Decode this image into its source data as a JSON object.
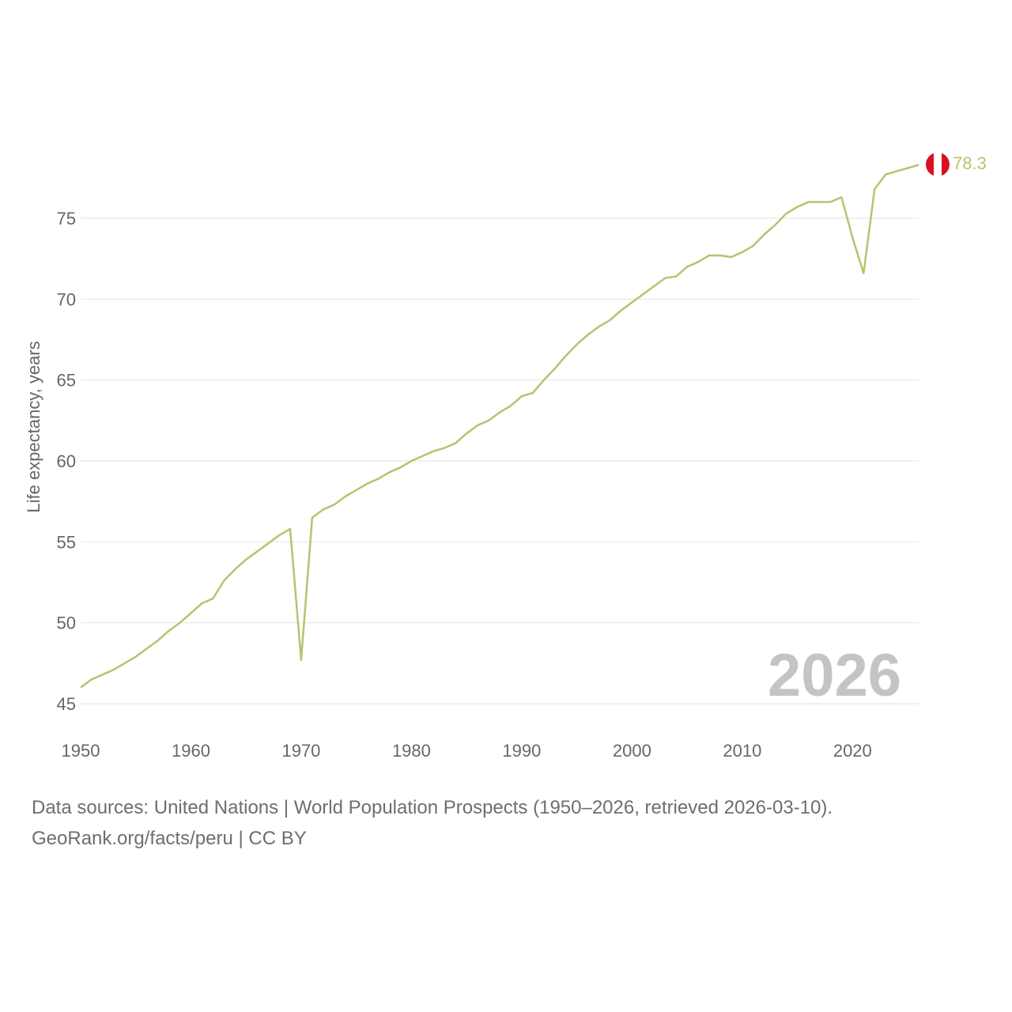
{
  "colors": {
    "line": "#b5c46f",
    "grid": "#e8e8e8",
    "tick_text": "#666666",
    "watermark": "#c4c4c4",
    "flag_red": "#d91023",
    "flag_white": "#ffffff"
  },
  "chart_data": {
    "type": "line",
    "title": "",
    "xlabel": "",
    "ylabel": "Life expectancy, years",
    "xlim": [
      1950,
      2026
    ],
    "ylim": [
      45,
      80
    ],
    "x_ticks": [
      "1950",
      "1960",
      "1970",
      "1980",
      "1990",
      "2000",
      "2010",
      "2020"
    ],
    "y_ticks": [
      "45",
      "50",
      "55",
      "60",
      "65",
      "70",
      "75"
    ],
    "grid": true,
    "annotation_year": "2026",
    "end_label": "78.3",
    "end_marker_icon": "peru-flag-icon",
    "series": [
      {
        "name": "Peru",
        "x": [
          1950,
          1951,
          1952,
          1953,
          1954,
          1955,
          1956,
          1957,
          1958,
          1959,
          1960,
          1961,
          1962,
          1963,
          1964,
          1965,
          1966,
          1967,
          1968,
          1969,
          1970,
          1971,
          1972,
          1973,
          1974,
          1975,
          1976,
          1977,
          1978,
          1979,
          1980,
          1981,
          1982,
          1983,
          1984,
          1985,
          1986,
          1987,
          1988,
          1989,
          1990,
          1991,
          1992,
          1993,
          1994,
          1995,
          1996,
          1997,
          1998,
          1999,
          2000,
          2001,
          2002,
          2003,
          2004,
          2005,
          2006,
          2007,
          2008,
          2009,
          2010,
          2011,
          2012,
          2013,
          2014,
          2015,
          2016,
          2017,
          2018,
          2019,
          2020,
          2021,
          2022,
          2023,
          2024,
          2025,
          2026
        ],
        "values": [
          46.0,
          46.5,
          46.8,
          47.1,
          47.5,
          47.9,
          48.4,
          48.9,
          49.5,
          50.0,
          50.6,
          51.2,
          51.5,
          52.6,
          53.3,
          53.9,
          54.4,
          54.9,
          55.4,
          55.8,
          47.7,
          56.5,
          57.0,
          57.3,
          57.8,
          58.2,
          58.6,
          58.9,
          59.3,
          59.6,
          60.0,
          60.3,
          60.6,
          60.8,
          61.1,
          61.7,
          62.2,
          62.5,
          63.0,
          63.4,
          64.0,
          64.2,
          65.0,
          65.7,
          66.5,
          67.2,
          67.8,
          68.3,
          68.7,
          69.3,
          69.8,
          70.3,
          70.8,
          71.3,
          71.4,
          72.0,
          72.3,
          72.7,
          72.7,
          72.6,
          72.9,
          73.3,
          74.0,
          74.6,
          75.3,
          75.7,
          76.0,
          76.0,
          76.0,
          76.3,
          73.8,
          71.6,
          76.8,
          77.7,
          77.9,
          78.1,
          78.3
        ]
      }
    ]
  },
  "footer": {
    "line1": "Data sources: United Nations | World Population Prospects (1950–2026, retrieved 2026-03-10).",
    "line2": "GeoRank.org/facts/peru | CC BY"
  }
}
